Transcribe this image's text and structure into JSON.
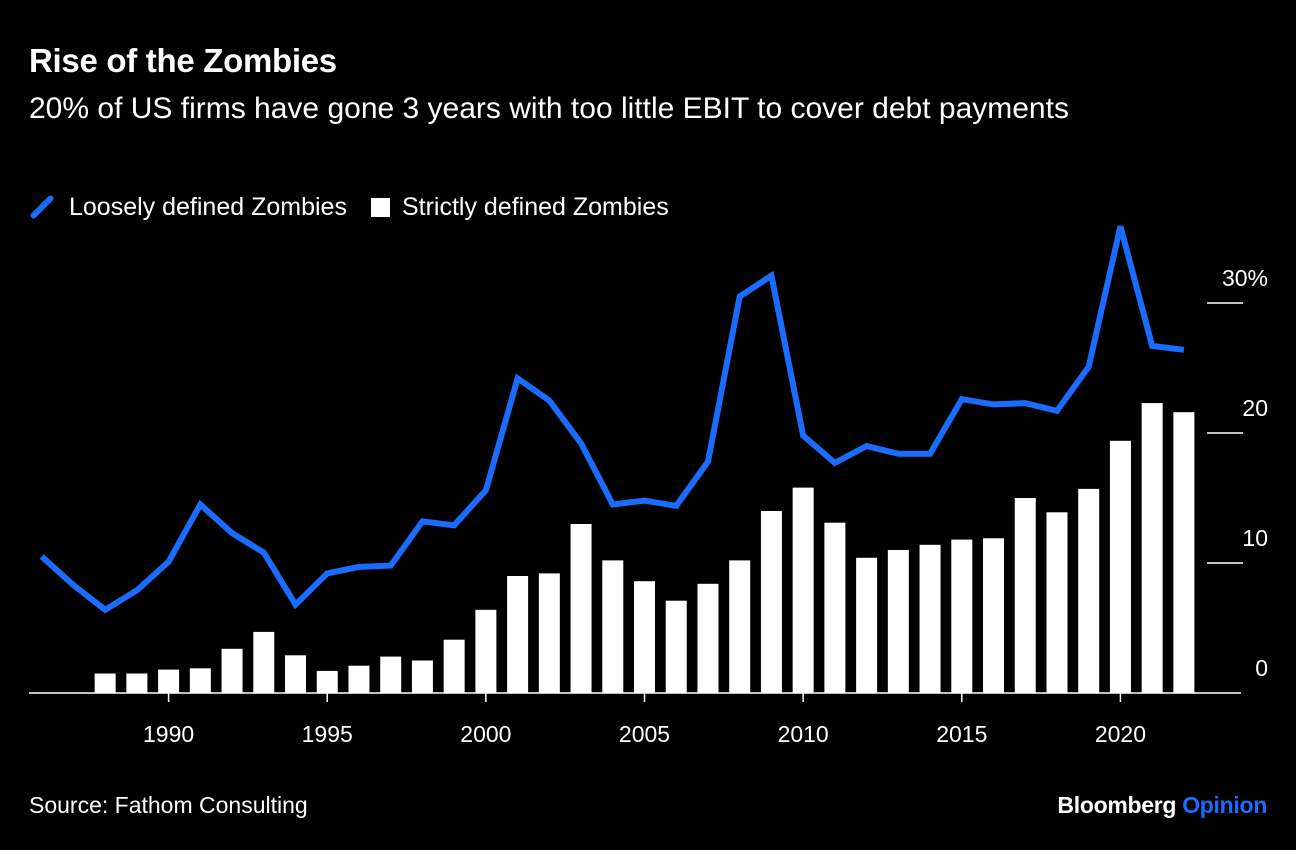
{
  "title": "Rise of the Zombies",
  "subtitle": "20% of US firms have gone 3 years with too little EBIT to cover debt payments",
  "source": "Source: Fathom Consulting",
  "brand": {
    "name": "Bloomberg",
    "accent": "Opinion"
  },
  "colors": {
    "background": "#000000",
    "line": "#1a6cff",
    "bars": "#ffffff",
    "text": "#ffffff"
  },
  "chart_data": {
    "type": "bar",
    "grid": false,
    "legend_position": "top-left",
    "y_axis_position": "right",
    "xlim": [
      1985.6,
      2023.8
    ],
    "ylim": [
      0,
      36
    ],
    "x_ticks": [
      1990,
      1995,
      2000,
      2005,
      2010,
      2015,
      2020
    ],
    "x_tick_labels": [
      "1990",
      "1995",
      "2000",
      "2005",
      "2010",
      "2015",
      "2020"
    ],
    "y_ticks": [
      0,
      10,
      20,
      30
    ],
    "y_tick_labels": [
      "0",
      "10",
      "20",
      "30%"
    ],
    "series": [
      {
        "name": "Loosely defined Zombies",
        "type": "line",
        "color": "#1a6cff",
        "x": [
          1986,
          1987,
          1988,
          1989,
          1990,
          1991,
          1992,
          1993,
          1994,
          1995,
          1996,
          1997,
          1998,
          1999,
          2000,
          2001,
          2002,
          2003,
          2004,
          2005,
          2006,
          2007,
          2008,
          2009,
          2010,
          2011,
          2012,
          2013,
          2014,
          2015,
          2016,
          2017,
          2018,
          2019,
          2020,
          2021,
          2022
        ],
        "values": [
          10.5,
          8.3,
          6.4,
          7.9,
          10.1,
          14.5,
          12.3,
          10.8,
          6.8,
          9.2,
          9.7,
          9.8,
          13.2,
          12.9,
          15.6,
          24.2,
          22.5,
          19.2,
          14.5,
          14.8,
          14.4,
          17.8,
          30.5,
          32.1,
          19.8,
          17.7,
          19.0,
          18.4,
          18.4,
          22.6,
          22.2,
          22.3,
          21.7,
          25.1,
          35.9,
          26.7,
          26.4
        ]
      },
      {
        "name": "Strictly defined Zombies",
        "type": "bar",
        "color": "#ffffff",
        "x": [
          1988,
          1989,
          1990,
          1991,
          1992,
          1993,
          1994,
          1995,
          1996,
          1997,
          1998,
          1999,
          2000,
          2001,
          2002,
          2003,
          2004,
          2005,
          2006,
          2007,
          2008,
          2009,
          2010,
          2011,
          2012,
          2013,
          2014,
          2015,
          2016,
          2017,
          2018,
          2019,
          2020,
          2021,
          2022
        ],
        "values": [
          1.5,
          1.5,
          1.8,
          1.9,
          3.4,
          4.7,
          2.9,
          1.7,
          2.1,
          2.8,
          2.5,
          4.1,
          6.4,
          9.0,
          9.2,
          13.0,
          10.2,
          8.6,
          7.1,
          8.4,
          10.2,
          14.0,
          15.8,
          13.1,
          10.4,
          11.0,
          11.4,
          11.8,
          11.9,
          15.0,
          13.9,
          15.7,
          19.4,
          22.3,
          21.6
        ]
      }
    ]
  }
}
